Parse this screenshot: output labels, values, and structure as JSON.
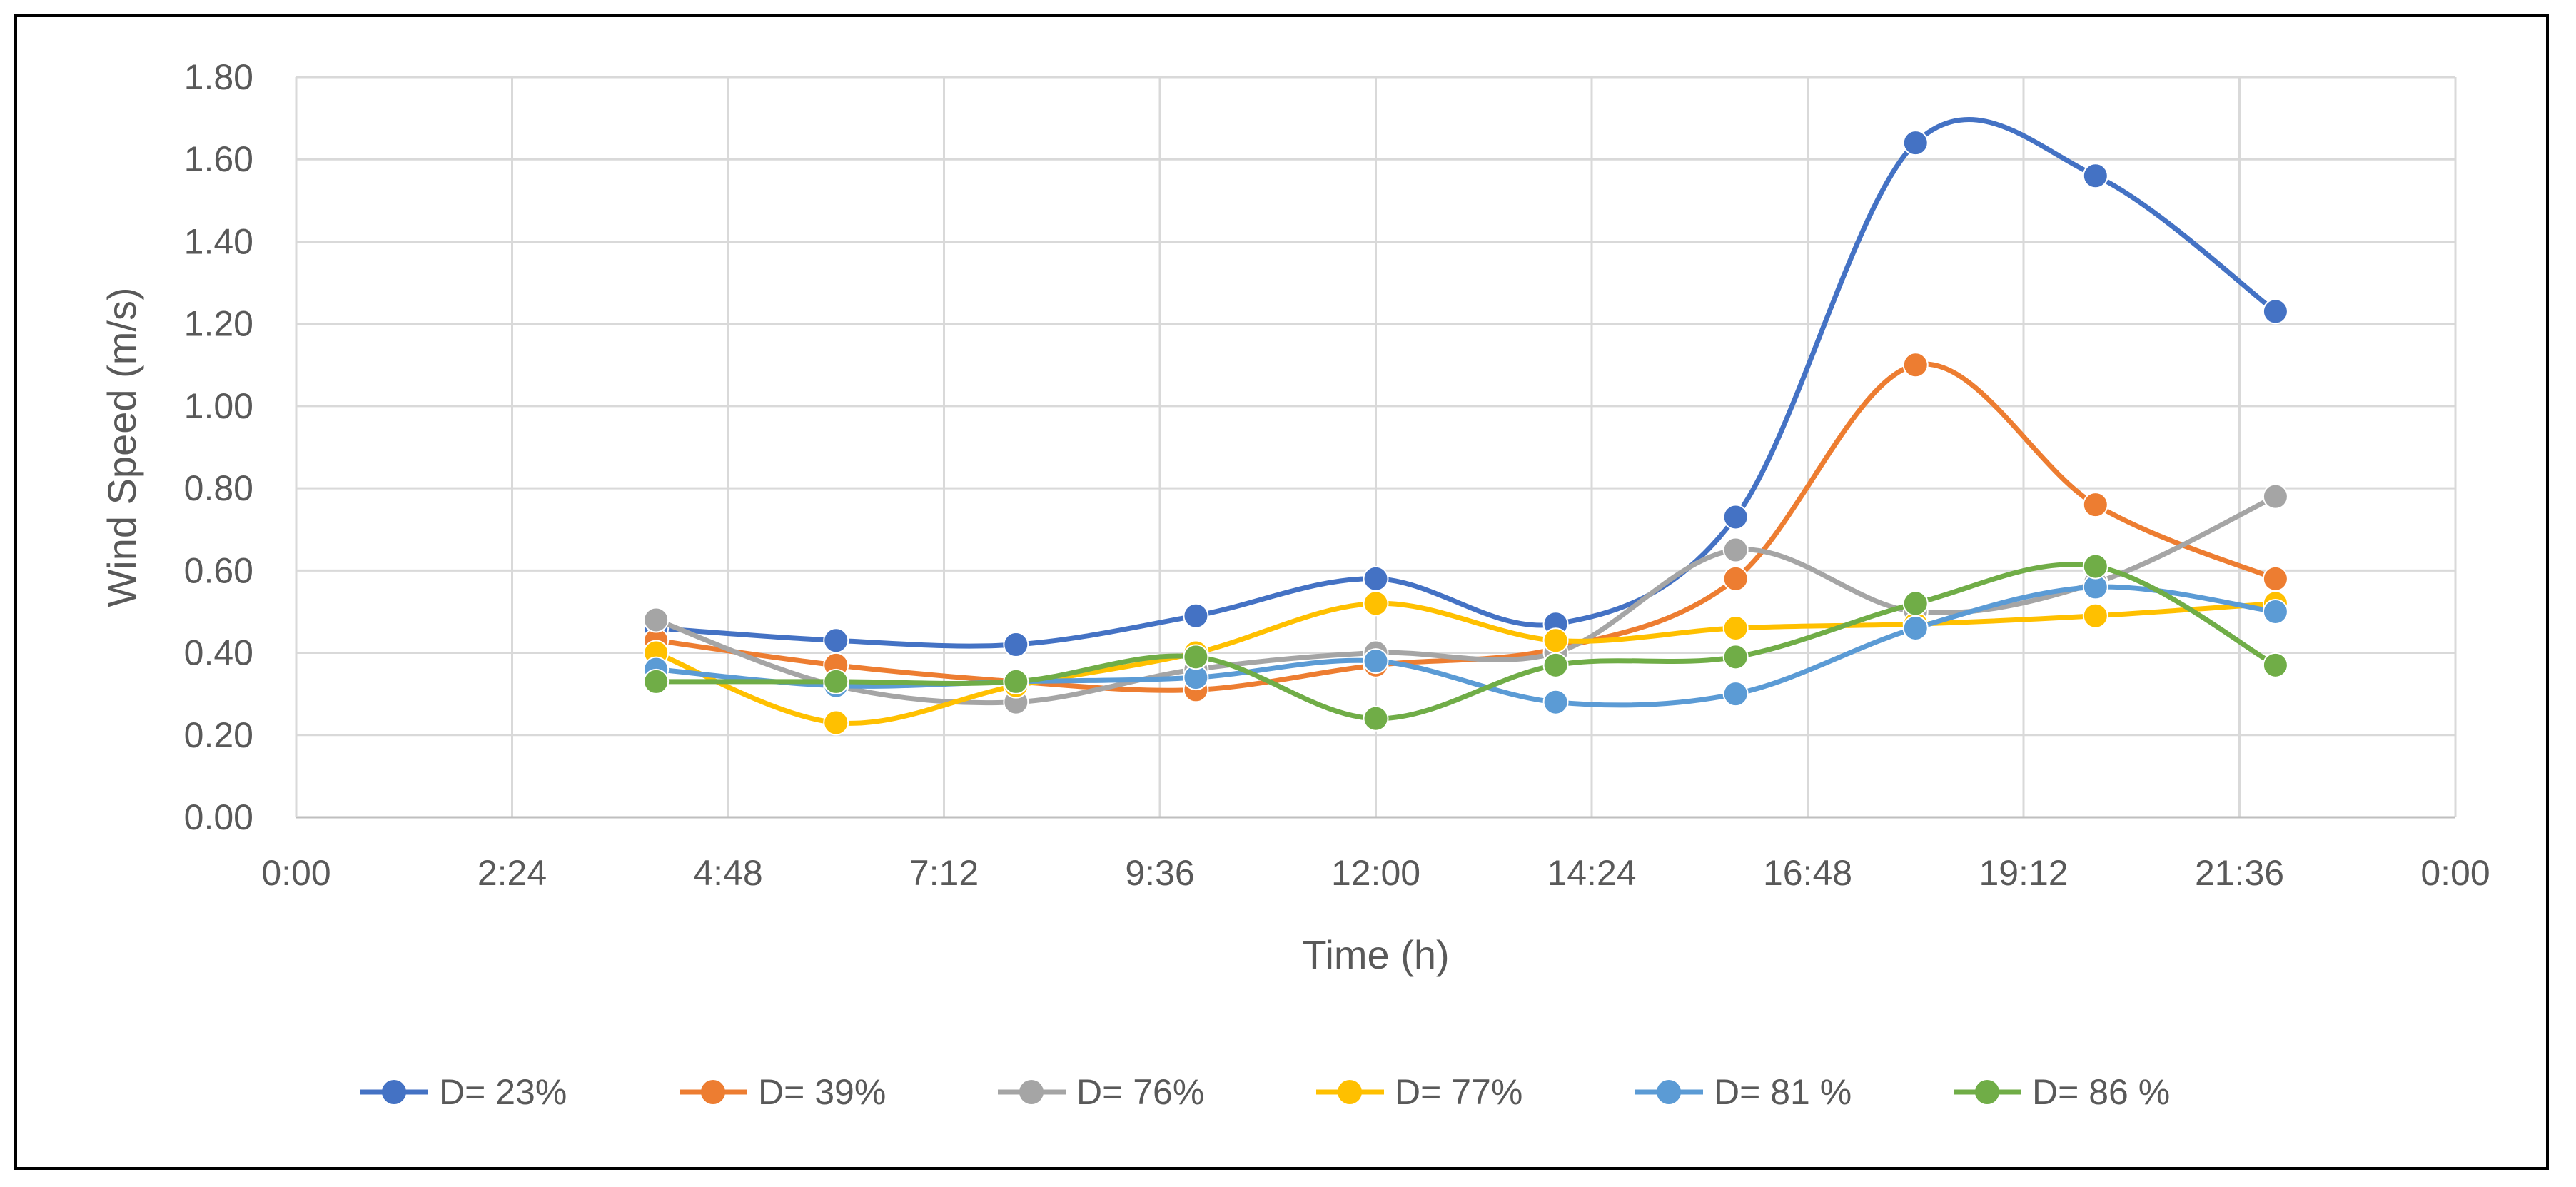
{
  "chart_data": {
    "type": "line",
    "title": "",
    "xlabel": "Time (h)",
    "ylabel": "Wind Speed (m/s)",
    "xlim": [
      0,
      24
    ],
    "ylim": [
      0,
      1.8
    ],
    "x_ticks": [
      "0:00",
      "2:24",
      "4:48",
      "7:12",
      "9:36",
      "12:00",
      "14:24",
      "16:48",
      "19:12",
      "21:36",
      "0:00"
    ],
    "y_ticks": [
      "0.00",
      "0.20",
      "0.40",
      "0.60",
      "0.80",
      "1.00",
      "1.20",
      "1.40",
      "1.60",
      "1.80"
    ],
    "grid": true,
    "legend_position": "bottom",
    "x": [
      4,
      6,
      8,
      10,
      12,
      14,
      16,
      18,
      20,
      22
    ],
    "series": [
      {
        "name": "D= 23%",
        "color": "#4472C4",
        "values": [
          0.46,
          0.43,
          0.42,
          0.49,
          0.58,
          0.47,
          0.73,
          1.64,
          1.56,
          1.23
        ]
      },
      {
        "name": "D= 39%",
        "color": "#ED7D31",
        "values": [
          0.43,
          0.37,
          0.33,
          0.31,
          0.37,
          0.41,
          0.58,
          1.1,
          0.76,
          0.58
        ]
      },
      {
        "name": "D= 76%",
        "color": "#A5A5A5",
        "values": [
          0.48,
          0.32,
          0.28,
          0.36,
          0.4,
          0.4,
          0.65,
          0.5,
          0.57,
          0.78
        ]
      },
      {
        "name": "D= 77%",
        "color": "#FFC000",
        "values": [
          0.4,
          0.23,
          0.32,
          0.4,
          0.52,
          0.43,
          0.46,
          0.47,
          0.49,
          0.52
        ]
      },
      {
        "name": "D= 81 %",
        "color": "#5B9BD5",
        "values": [
          0.36,
          0.32,
          0.33,
          0.34,
          0.38,
          0.28,
          0.3,
          0.46,
          0.56,
          0.5
        ]
      },
      {
        "name": "D= 86 %",
        "color": "#70AD47",
        "values": [
          0.33,
          0.33,
          0.33,
          0.39,
          0.24,
          0.37,
          0.39,
          0.52,
          0.61,
          0.37
        ]
      }
    ]
  }
}
